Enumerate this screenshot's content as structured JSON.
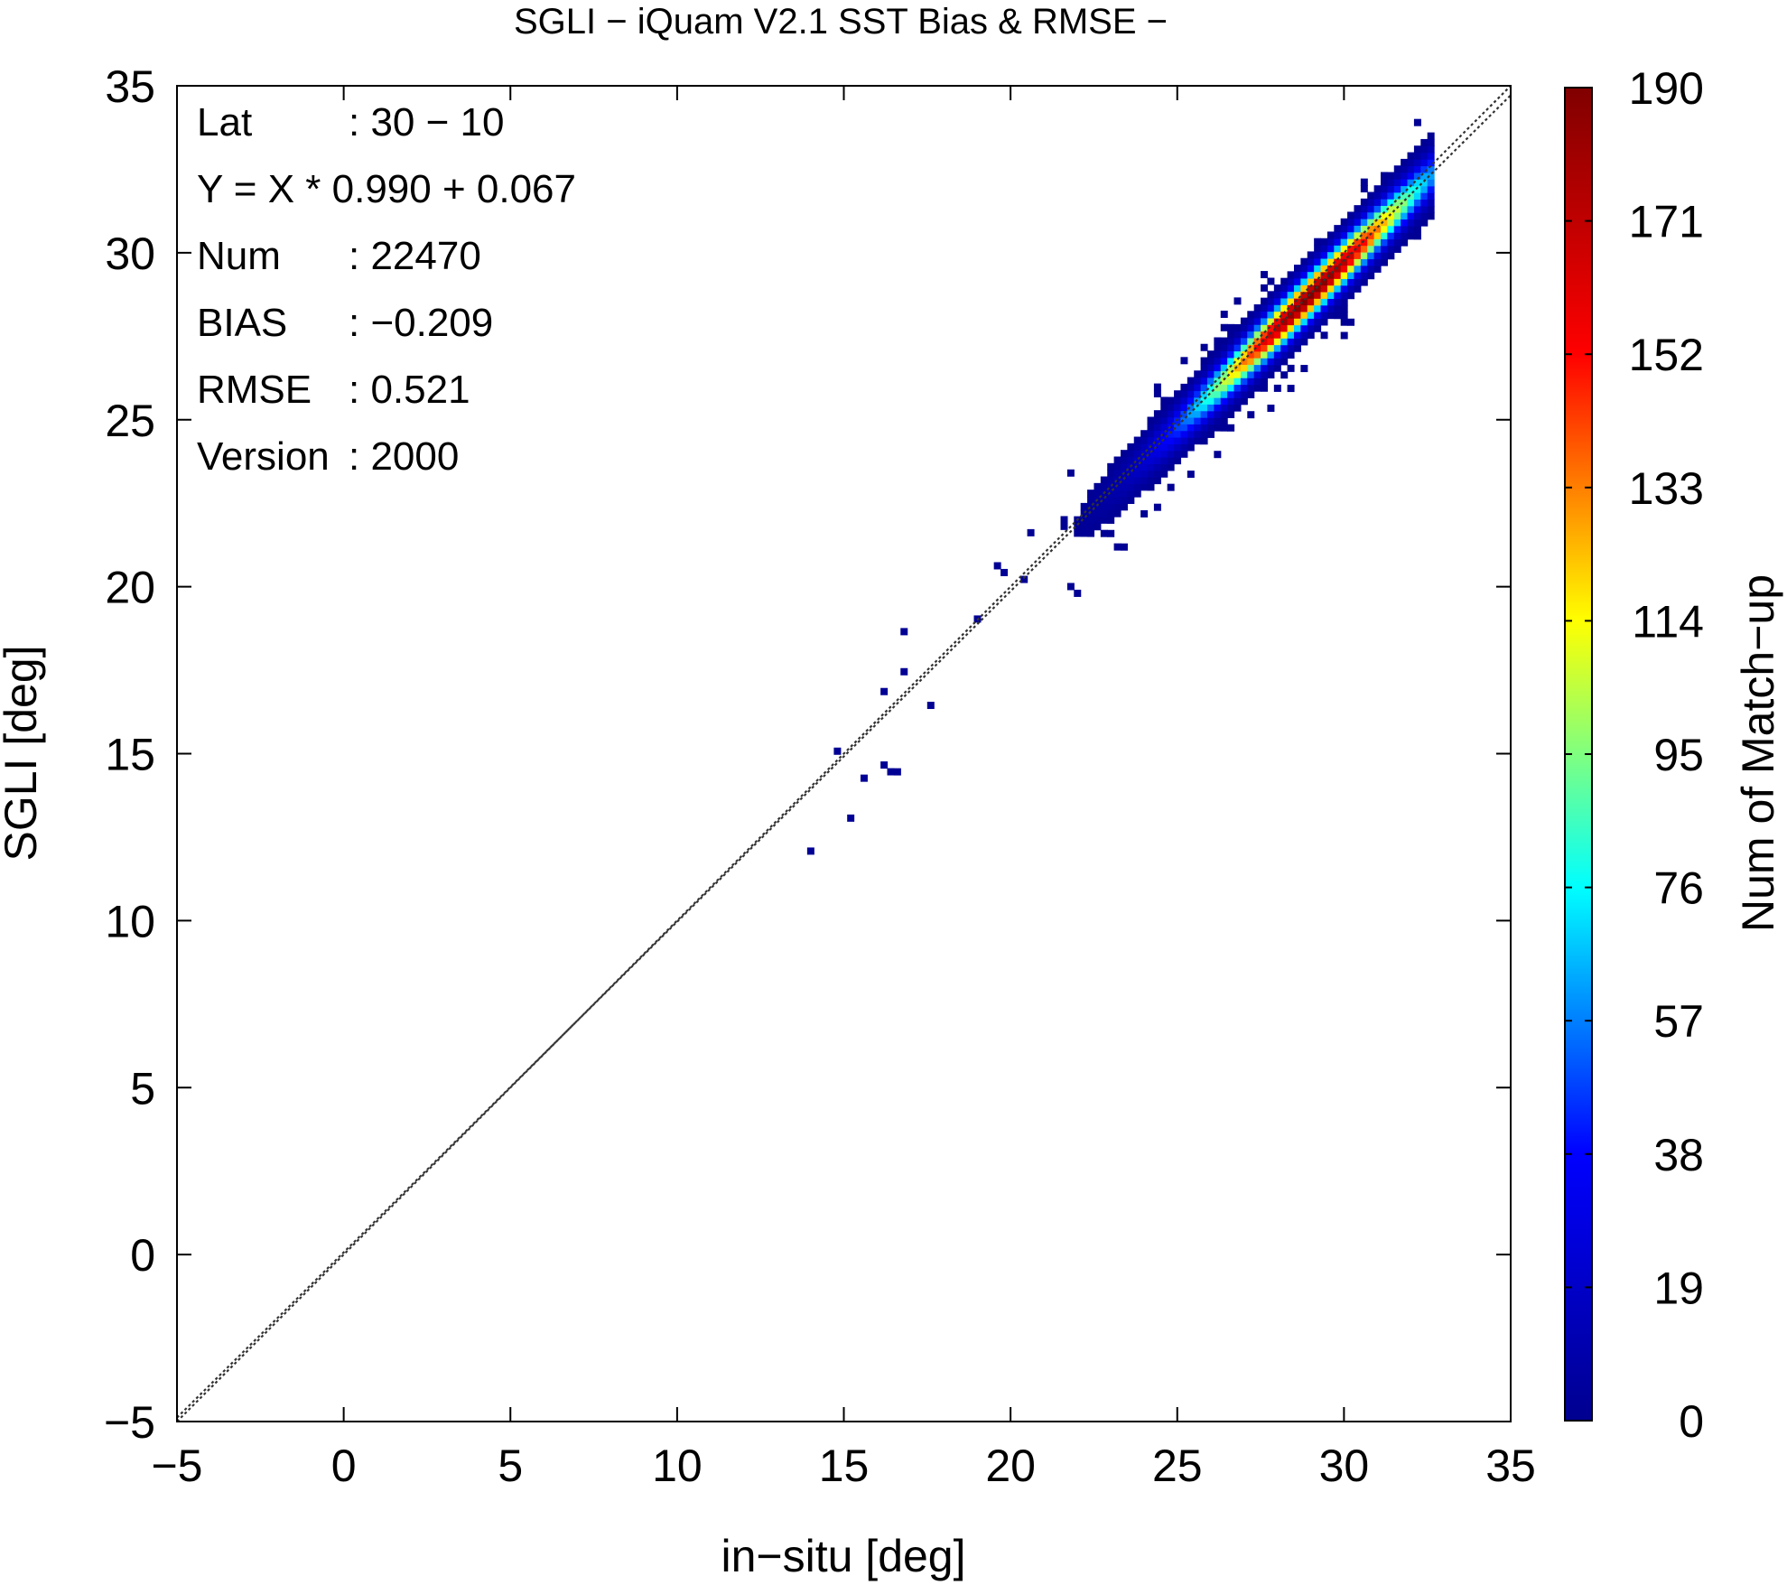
{
  "chart_data": {
    "type": "heatmap",
    "title": "SGLI − iQuam V2.1 SST Bias & RMSE  −",
    "xlabel": "in−situ [deg]",
    "ylabel": "SGLI [deg]",
    "xlim": [
      -5,
      35
    ],
    "ylim": [
      -5,
      35
    ],
    "xticks": [
      -5,
      0,
      5,
      10,
      15,
      20,
      25,
      30,
      35
    ],
    "yticks": [
      -5,
      0,
      5,
      10,
      15,
      20,
      25,
      30,
      35
    ],
    "xtick_labels": [
      "−5",
      "0",
      "5",
      "10",
      "15",
      "20",
      "25",
      "30",
      "35"
    ],
    "ytick_labels": [
      "−5",
      "0",
      "5",
      "10",
      "15",
      "20",
      "25",
      "30",
      "35"
    ],
    "grid": false,
    "reference_lines": [
      {
        "name": "1:1",
        "slope": 1.0,
        "intercept": 0.0,
        "style": "dotted"
      },
      {
        "name": "fit",
        "slope": 0.99,
        "intercept": 0.067,
        "style": "dotted"
      }
    ],
    "colorbar": {
      "label": "Num of Match−up",
      "min": 0,
      "max": 190,
      "ticks": [
        0,
        19,
        38,
        57,
        76,
        95,
        114,
        133,
        152,
        171,
        190
      ],
      "colors": [
        "#00008f",
        "#0000ff",
        "#00ffff",
        "#ffff00",
        "#ff0000",
        "#800000"
      ]
    },
    "density": {
      "bin_size": 0.2,
      "center_line": {
        "slope": 0.99,
        "intercept": -0.07
      },
      "x_range": [
        13.5,
        32.5
      ],
      "peak_x": 29.0,
      "peak_count": 190
    },
    "stats": [
      {
        "key": "Lat",
        "value": ": 30 − 10"
      },
      {
        "key": "Y = X * 0.990 + 0.067",
        "value": ""
      },
      {
        "key": "Num",
        "value": ": 22470"
      },
      {
        "key": "BIAS",
        "value": ": −0.209"
      },
      {
        "key": "RMSE",
        "value": ": 0.521"
      },
      {
        "key": "Version",
        "value": ": 2000"
      }
    ]
  }
}
